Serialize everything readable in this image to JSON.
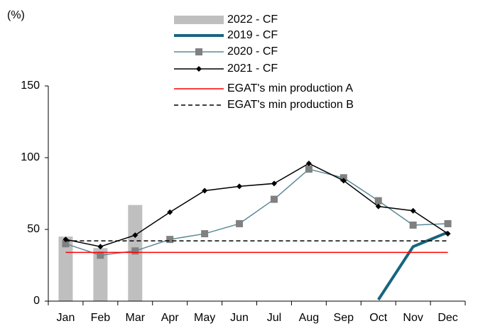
{
  "chart_data": {
    "type": "bar",
    "y_unit_label": "(%)",
    "categories": [
      "Jan",
      "Feb",
      "Mar",
      "Apr",
      "May",
      "Jun",
      "Jul",
      "Aug",
      "Sep",
      "Oct",
      "Nov",
      "Dec"
    ],
    "ylim": [
      0,
      150
    ],
    "yticks": [
      0,
      50,
      100,
      150
    ],
    "grid": false,
    "series": [
      {
        "name": "2022 - CF",
        "kind": "bar",
        "color": "#bfbfbf",
        "values": [
          45,
          37,
          67,
          null,
          null,
          null,
          null,
          null,
          null,
          null,
          null,
          null
        ]
      },
      {
        "name": "2019 - CF",
        "kind": "line",
        "color": "#17657e",
        "line_width": 4,
        "values": [
          null,
          null,
          null,
          null,
          null,
          null,
          null,
          null,
          null,
          1,
          38,
          48
        ]
      },
      {
        "name": "2020 - CF",
        "kind": "line",
        "color": "#5b8a9a",
        "marker": "square",
        "marker_color": "#808080",
        "line_width": 1.5,
        "values": [
          40,
          32,
          35,
          43,
          47,
          54,
          71,
          92,
          86,
          70,
          53,
          54
        ]
      },
      {
        "name": "2021 - CF",
        "kind": "line",
        "color": "#000000",
        "marker": "diamond",
        "marker_color": "#000000",
        "line_width": 1.5,
        "values": [
          43,
          38,
          46,
          62,
          77,
          80,
          82,
          96,
          84,
          66,
          63,
          47
        ]
      },
      {
        "name": "EGAT's min production A",
        "kind": "line",
        "color": "#ff0000",
        "line_width": 1.5,
        "values": [
          34,
          34,
          34,
          34,
          34,
          34,
          34,
          34,
          34,
          34,
          34,
          34
        ]
      },
      {
        "name": "EGAT's min production B",
        "kind": "line",
        "color": "#000000",
        "dash": true,
        "line_width": 1.5,
        "values": [
          42,
          42,
          42,
          42,
          42,
          42,
          42,
          42,
          42,
          42,
          42,
          42
        ]
      }
    ]
  }
}
